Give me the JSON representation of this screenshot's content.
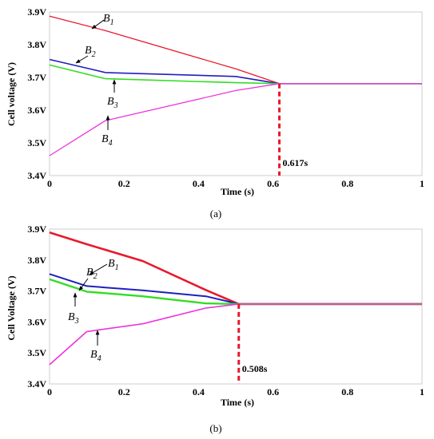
{
  "chart_data": [
    {
      "type": "line",
      "caption": "(a)",
      "ylabel": "Cell voltage (V)",
      "xlabel": "Time (s)",
      "xlim": [
        0,
        1
      ],
      "ylim": [
        3.4,
        3.9
      ],
      "xticks": [
        "0",
        "0.2",
        "0.4",
        "0.6",
        "0.8",
        "1"
      ],
      "yticks": [
        "3.4V",
        "3.5V",
        "3.6V",
        "3.7V",
        "3.8V",
        "3.9V"
      ],
      "marker": {
        "x": 0.617,
        "label": "0.617s"
      },
      "series": [
        {
          "name": "B1",
          "sub": "1",
          "color": "#e8192c",
          "x": [
            0,
            0.15,
            0.5,
            0.617,
            1
          ],
          "y": [
            3.887,
            3.843,
            3.726,
            3.681,
            3.681
          ]
        },
        {
          "name": "B2",
          "sub": "2",
          "color": "#1f1fbf",
          "x": [
            0,
            0.15,
            0.5,
            0.617,
            1
          ],
          "y": [
            3.755,
            3.715,
            3.703,
            3.681,
            3.681
          ]
        },
        {
          "name": "B3",
          "sub": "3",
          "color": "#33dd22",
          "x": [
            0,
            0.15,
            0.5,
            0.617,
            1
          ],
          "y": [
            3.738,
            3.696,
            3.684,
            3.681,
            3.681
          ]
        },
        {
          "name": "B4",
          "sub": "4",
          "color": "#ee33dd",
          "x": [
            0,
            0.15,
            0.5,
            0.617,
            1
          ],
          "y": [
            3.461,
            3.568,
            3.66,
            3.681,
            3.681
          ]
        }
      ]
    },
    {
      "type": "line",
      "caption": "(b)",
      "ylabel": "Cell Voltage (V)",
      "xlabel": "Time (s)",
      "xlim": [
        0,
        1
      ],
      "ylim": [
        3.4,
        3.9
      ],
      "xticks": [
        "0",
        "0.2",
        "0.4",
        "0.6",
        "0.8",
        "1"
      ],
      "yticks": [
        "3.4V",
        "3.5V",
        "3.6V",
        "3.7V",
        "3.8V",
        "3.9V"
      ],
      "marker": {
        "x": 0.508,
        "label": "0.508s"
      },
      "series": [
        {
          "name": "B1",
          "sub": "1",
          "color": "#e8192c",
          "x": [
            0,
            0.1,
            0.25,
            0.42,
            0.508,
            1
          ],
          "y": [
            3.889,
            3.851,
            3.797,
            3.703,
            3.658,
            3.658
          ]
        },
        {
          "name": "B2",
          "sub": "2",
          "color": "#1f1fbf",
          "x": [
            0,
            0.1,
            0.25,
            0.42,
            0.508,
            1
          ],
          "y": [
            3.755,
            3.716,
            3.702,
            3.683,
            3.658,
            3.658
          ]
        },
        {
          "name": "B3",
          "sub": "3",
          "color": "#33dd22",
          "x": [
            0,
            0.1,
            0.25,
            0.42,
            0.508,
            1
          ],
          "y": [
            3.738,
            3.698,
            3.683,
            3.66,
            3.658,
            3.658
          ]
        },
        {
          "name": "B4",
          "sub": "4",
          "color": "#ee33dd",
          "x": [
            0,
            0.1,
            0.25,
            0.42,
            0.508,
            1
          ],
          "y": [
            3.462,
            3.569,
            3.594,
            3.645,
            3.658,
            3.658
          ]
        }
      ]
    }
  ]
}
